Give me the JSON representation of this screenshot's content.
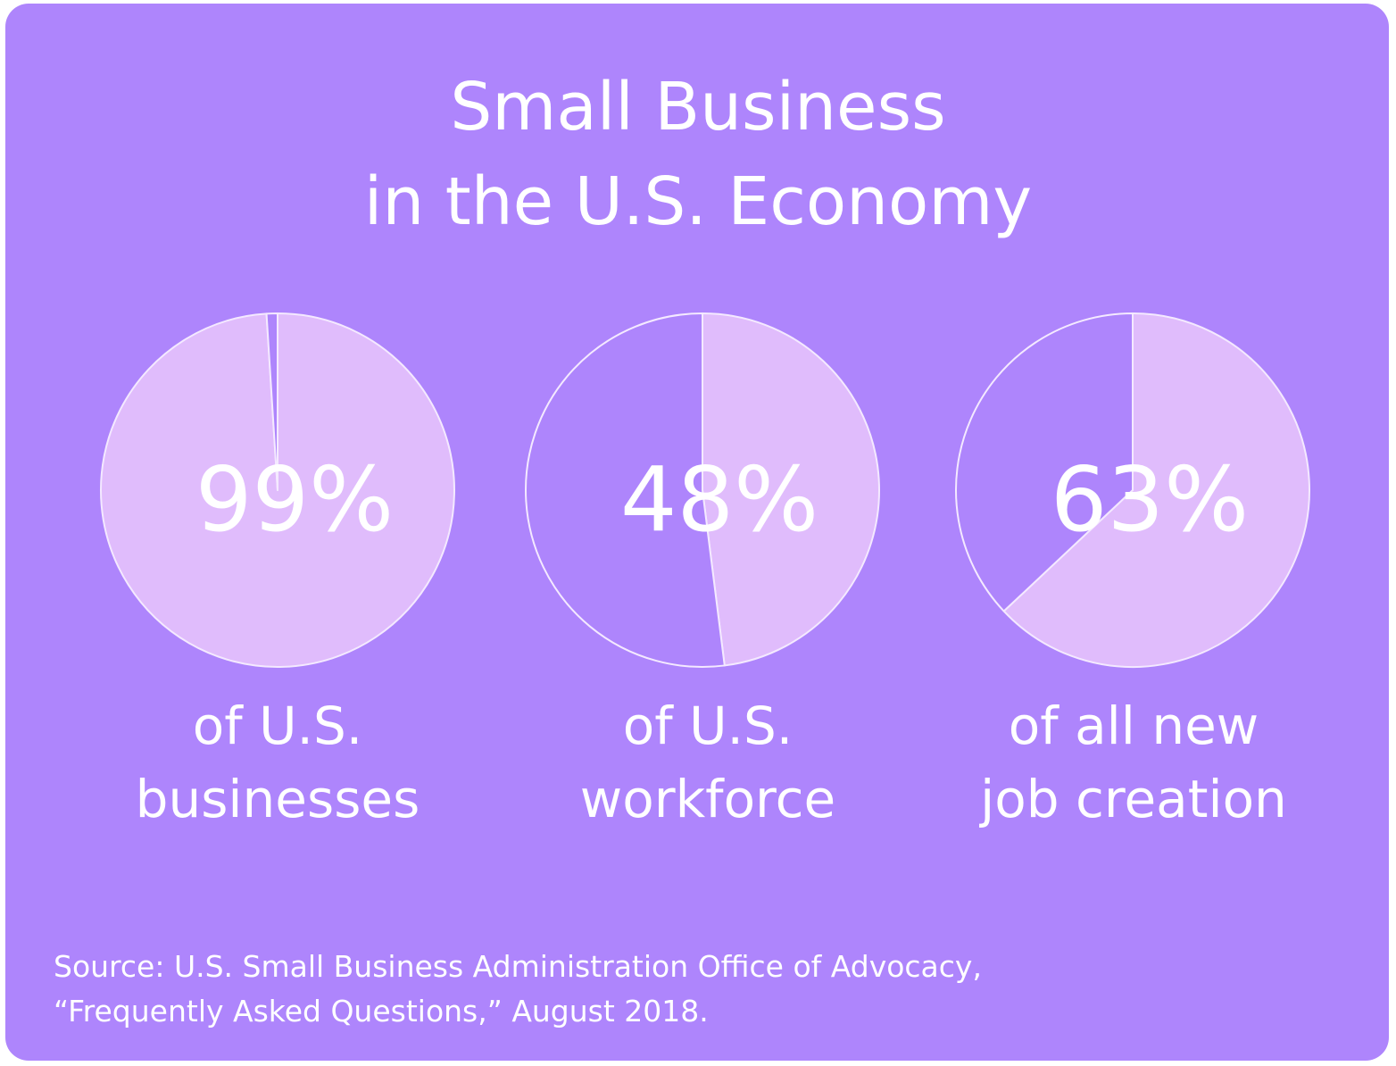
{
  "title": {
    "line1": "Small Business",
    "line2": "in the U.S. Economy"
  },
  "colors": {
    "background": "#ae85fc",
    "share_fill": "#e0bcfc",
    "remainder_fill": "#ae85fc",
    "outline": "#f4e9ff",
    "text": "#ffffff"
  },
  "chart_data": [
    {
      "type": "pie",
      "slices": [
        {
          "label": "share",
          "value": 99
        },
        {
          "label": "remainder",
          "value": 1
        }
      ],
      "value_label": "99%",
      "caption": [
        "of U.S.",
        "businesses"
      ]
    },
    {
      "type": "pie",
      "slices": [
        {
          "label": "share",
          "value": 48
        },
        {
          "label": "remainder",
          "value": 52
        }
      ],
      "value_label": "48%",
      "caption": [
        "of U.S.",
        "workforce"
      ]
    },
    {
      "type": "pie",
      "slices": [
        {
          "label": "share",
          "value": 63
        },
        {
          "label": "remainder",
          "value": 37
        }
      ],
      "value_label": "63%",
      "caption": [
        "of all new",
        "job creation"
      ]
    }
  ],
  "source": {
    "line1": "Source: U.S. Small Business Administration Office of Advocacy,",
    "line2": "“Frequently Asked Questions,” August 2018."
  }
}
